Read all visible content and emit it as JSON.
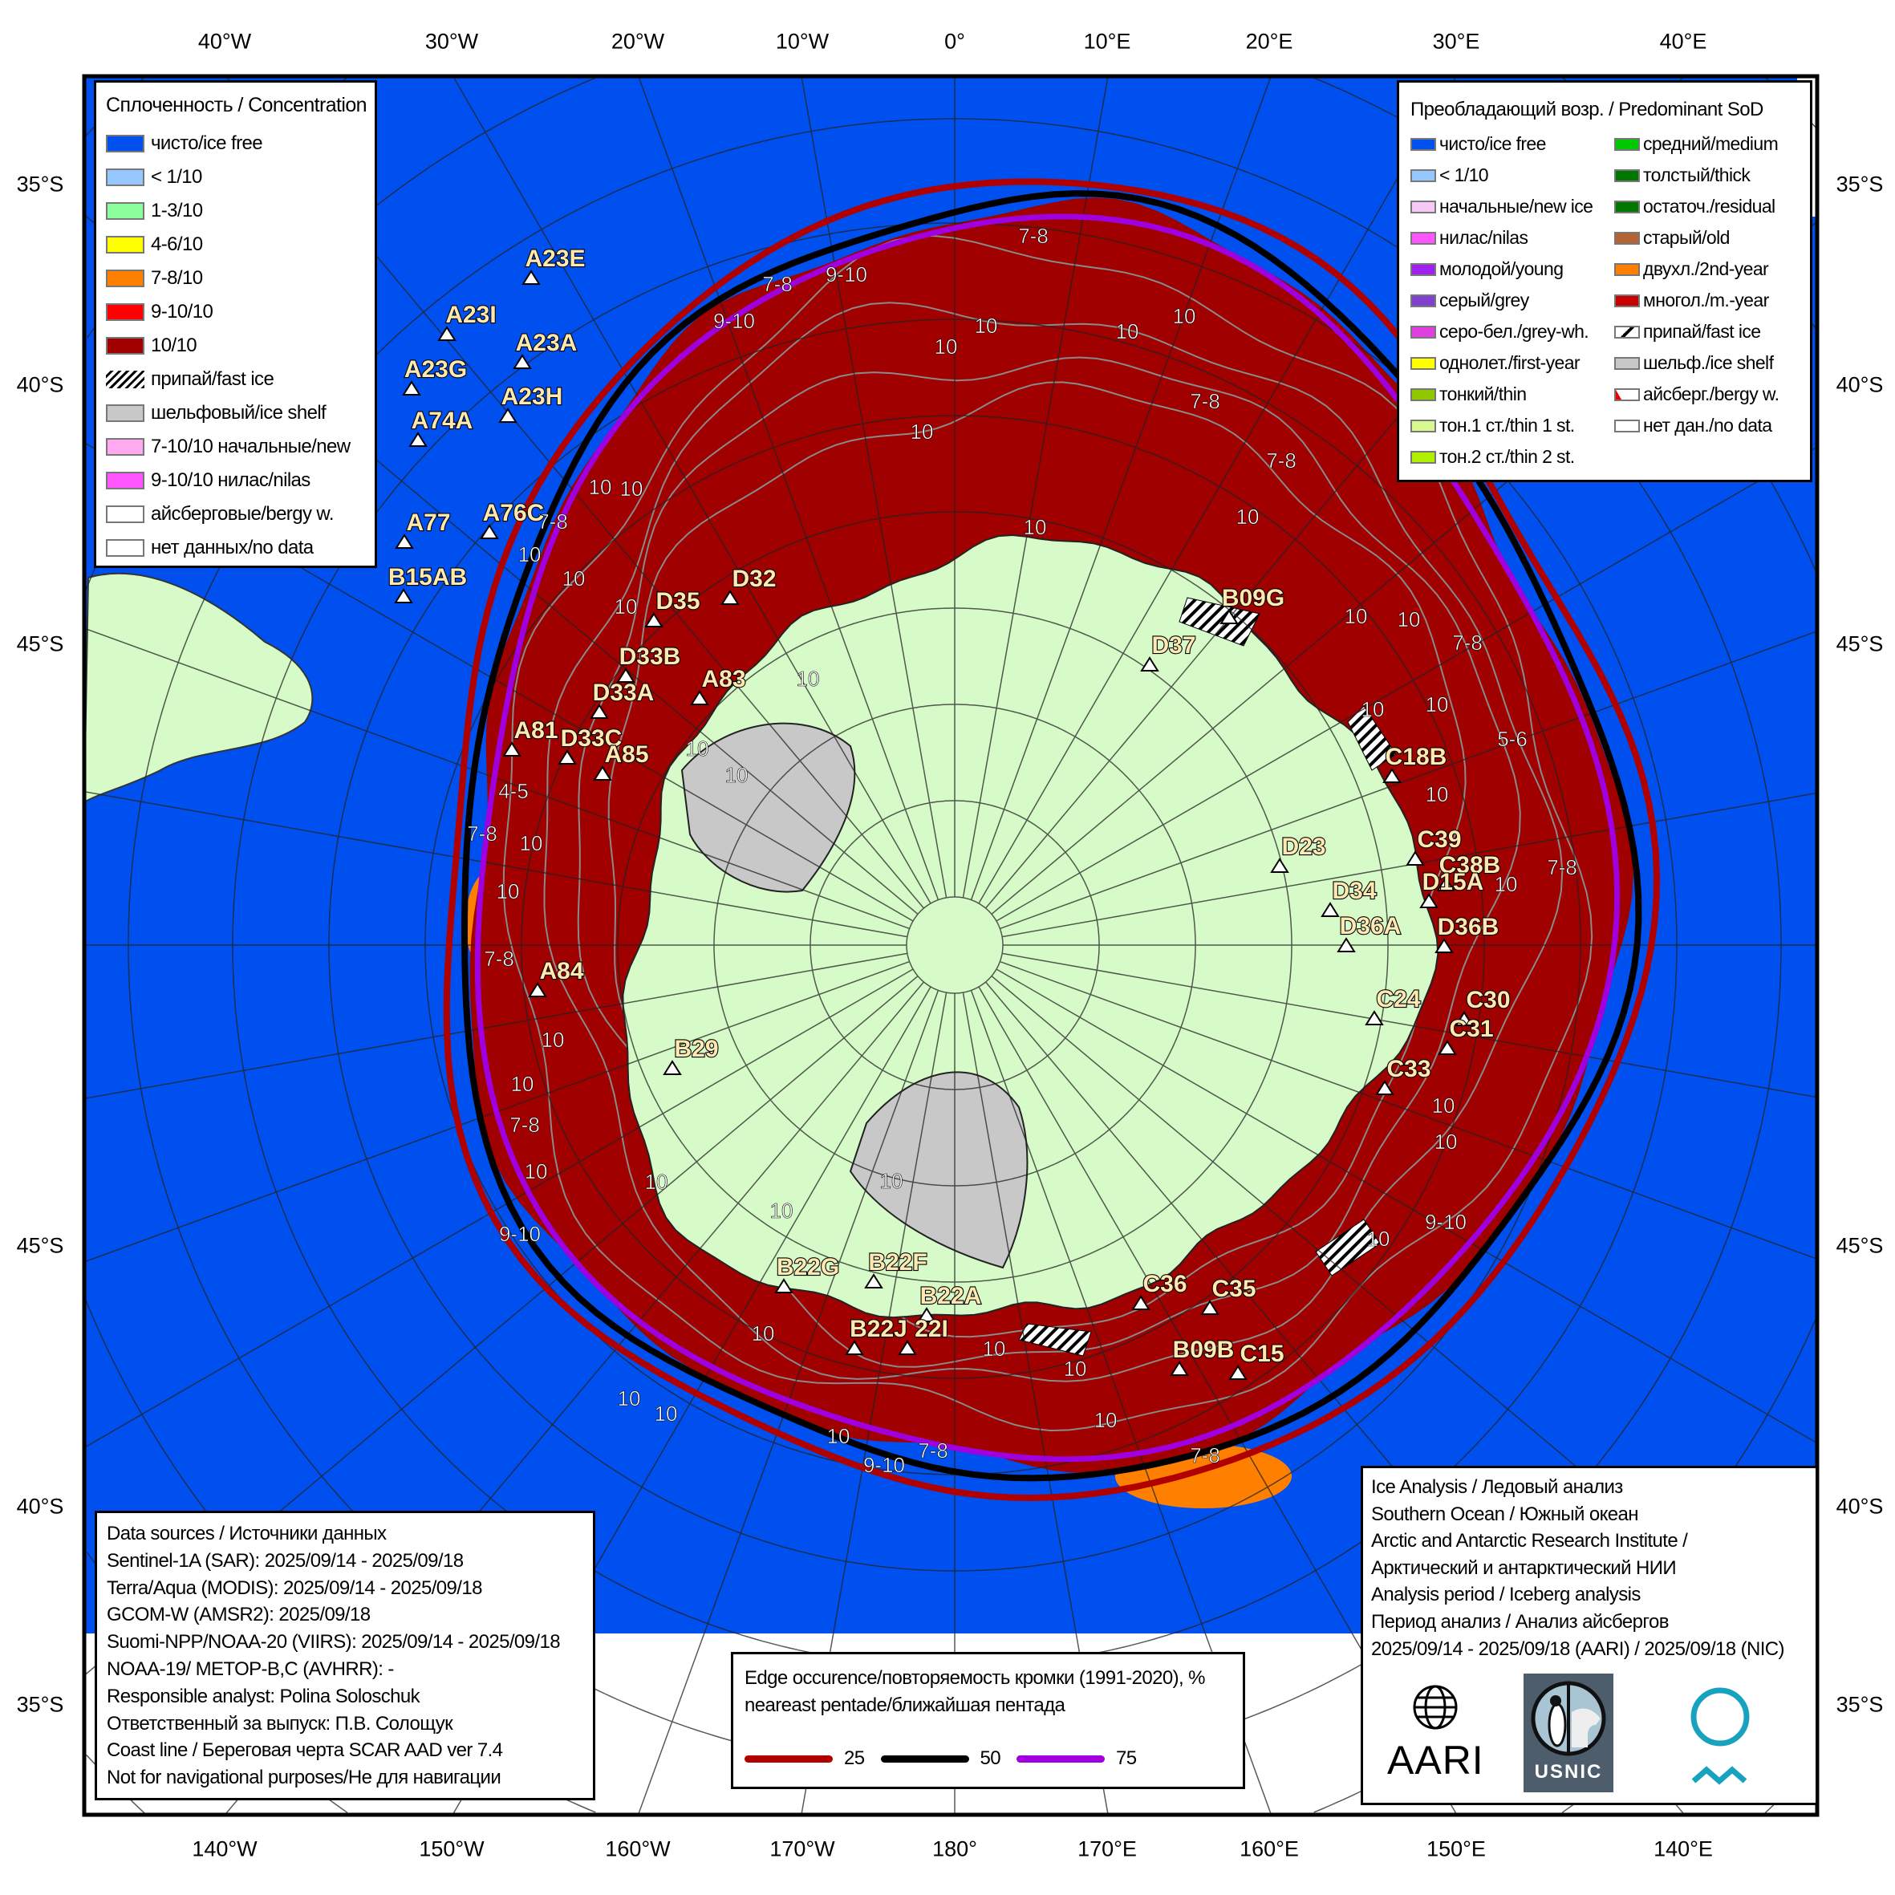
{
  "axes": {
    "top": [
      "40°W",
      "30°W",
      "20°W",
      "10°W",
      "0°",
      "10°E",
      "20°E",
      "30°E",
      "40°E"
    ],
    "bottom": [
      "140°W",
      "150°W",
      "160°W",
      "170°W",
      "180°",
      "170°E",
      "160°E",
      "150°E",
      "140°E"
    ],
    "left": [
      "35°S",
      "40°S",
      "45°S",
      "45°S",
      "40°S",
      "35°S"
    ],
    "right": [
      "35°S",
      "40°S",
      "45°S",
      "45°S",
      "40°S",
      "35°S"
    ]
  },
  "concentration_legend": {
    "title": "Сплоченность / Concentration",
    "items": [
      {
        "label": "чисто/ice free",
        "color": "#0050f0"
      },
      {
        "label": "< 1/10",
        "color": "#96c8ff"
      },
      {
        "label": "1-3/10",
        "color": "#8cff9c"
      },
      {
        "label": "4-6/10",
        "color": "#ffff00"
      },
      {
        "label": "7-8/10",
        "color": "#ff8000"
      },
      {
        "label": "9-10/10",
        "color": "#ff0000"
      },
      {
        "label": "10/10",
        "color": "#a00000"
      },
      {
        "label": "припай/fast ice",
        "color": "hatch"
      },
      {
        "label": "шельфовый/ice shelf",
        "color": "#c8c8c8"
      },
      {
        "label": "7-10/10 начальные/new",
        "color": "#ffaaf0"
      },
      {
        "label": "9-10/10 нилас/nilas",
        "color": "#ff55ff"
      },
      {
        "label": "айсберговые/bergy w.",
        "color": "#ffffff"
      },
      {
        "label": "нет данных/no data",
        "color": "#ffffff"
      }
    ]
  },
  "sod_legend": {
    "title": "Преобладающий возр. / Predominant SoD",
    "left": [
      {
        "label": "чисто/ice free",
        "color": "#0050f0"
      },
      {
        "label": "< 1/10",
        "color": "#96c8ff"
      },
      {
        "label": "начальные/new ice",
        "color": "#f5c8f5"
      },
      {
        "label": "нилас/nilas",
        "color": "#ff55ff"
      },
      {
        "label": "молодой/young",
        "color": "#a020f0"
      },
      {
        "label": "серый/grey",
        "color": "#8040d0"
      },
      {
        "label": "серо-бел./grey-wh.",
        "color": "#e040e0"
      },
      {
        "label": "однолет./first-year",
        "color": "#ffff00"
      },
      {
        "label": "тонкий/thin",
        "color": "#90c800"
      },
      {
        "label": "тон.1 ст./thin 1 st.",
        "color": "#d8f890"
      },
      {
        "label": "тон.2 ст./thin 2 st.",
        "color": "#b0f000"
      }
    ],
    "right": [
      {
        "label": "средний/medium",
        "color": "#00c800"
      },
      {
        "label": "толстый/thick",
        "color": "#007800"
      },
      {
        "label": "остаточ./residual",
        "color": "#007800"
      },
      {
        "label": "старый/old",
        "color": "#b46432"
      },
      {
        "label": "двухл./2nd-year",
        "color": "#ff8000"
      },
      {
        "label": "многол./m.-year",
        "color": "#c80000"
      },
      {
        "label": "припай/fast ice",
        "color": "fast"
      },
      {
        "label": "шельф./ice shelf",
        "color": "#c8c8c8"
      },
      {
        "label": "айсберг./bergy w.",
        "color": "bergy"
      },
      {
        "label": "нет дан./no data",
        "color": "#ffffff"
      }
    ]
  },
  "icebergs": [
    "A23E",
    "A23I",
    "A23A",
    "A23G",
    "A23H",
    "A74A",
    "A77",
    "A76C",
    "B15AB",
    "D32",
    "D35",
    "D33B",
    "A83",
    "D33A",
    "A81",
    "D33C",
    "A85",
    "B09G",
    "D37",
    "C18B",
    "D23",
    "C39",
    "C38B",
    "D15A",
    "D34",
    "D36A",
    "D36B",
    "A84",
    "C24",
    "C30",
    "C31",
    "B29",
    "C33",
    "B22G",
    "B22F",
    "B22A",
    "B22J",
    "22I",
    "C36",
    "C35",
    "B09B",
    "C15"
  ],
  "contour_labels": [
    "7-8",
    "9-10",
    "9-10",
    "7-8",
    "10",
    "10",
    "10",
    "10",
    "7-8",
    "7-8",
    "10",
    "10",
    "10",
    "10",
    "10",
    "7-8",
    "5-6",
    "7-8",
    "10",
    "10",
    "10",
    "10",
    "9-10",
    "7-8",
    "10",
    "10",
    "10",
    "10",
    "9-10",
    "7-8",
    "10",
    "10",
    "10",
    "9-10",
    "10",
    "7-8",
    "10",
    "10",
    "7-8",
    "10",
    "10",
    "7-8",
    "4-5",
    "10",
    "10",
    "10",
    "10",
    "10",
    "10",
    "10",
    "10",
    "7-8",
    "10",
    "10",
    "10",
    "10",
    "10",
    "10"
  ],
  "data_sources": {
    "lines": [
      "Data sources / Источники данных",
      "Sentinel-1A (SAR): 2025/09/14 - 2025/09/18",
      "Terra/Aqua (MODIS): 2025/09/14 - 2025/09/18",
      "GCOM-W (AMSR2): 2025/09/18",
      "Suomi-NPP/NOAA-20 (VIIRS): 2025/09/14 - 2025/09/18",
      "NOAA-19/ METOP-B,C (AVHRR): -",
      "Responsible analyst: Polina Soloschuk",
      "Ответственный за выпуск: П.В. Солощук",
      "Coast line / Береговая черта SCAR AAD ver 7.4",
      "Not for navigational purposes/Не для навигации"
    ]
  },
  "edge_legend": {
    "line1": "Edge occurence/повторяемость кромки (1991-2020), %",
    "line2": "neareast pentade/ближайшая пентада",
    "items": [
      {
        "value": "25",
        "color": "#b00000"
      },
      {
        "value": "50",
        "color": "#000000"
      },
      {
        "value": "75",
        "color": "#a000e0"
      }
    ]
  },
  "info": {
    "lines": [
      "Ice Analysis / Ледовый анализ",
      "Southern Ocean / Южный океан",
      "Arctic and Antarctic Research Institute /",
      "Арктический и антарктический НИИ",
      "Analysis period / Iceberg analysis",
      "Период анализ / Анализ айсбергов",
      "2025/09/14 - 2025/09/18 (AARI) / 2025/09/18 (NIC)"
    ],
    "logos": {
      "aari": "AARI",
      "usnic": "USNIC"
    }
  }
}
